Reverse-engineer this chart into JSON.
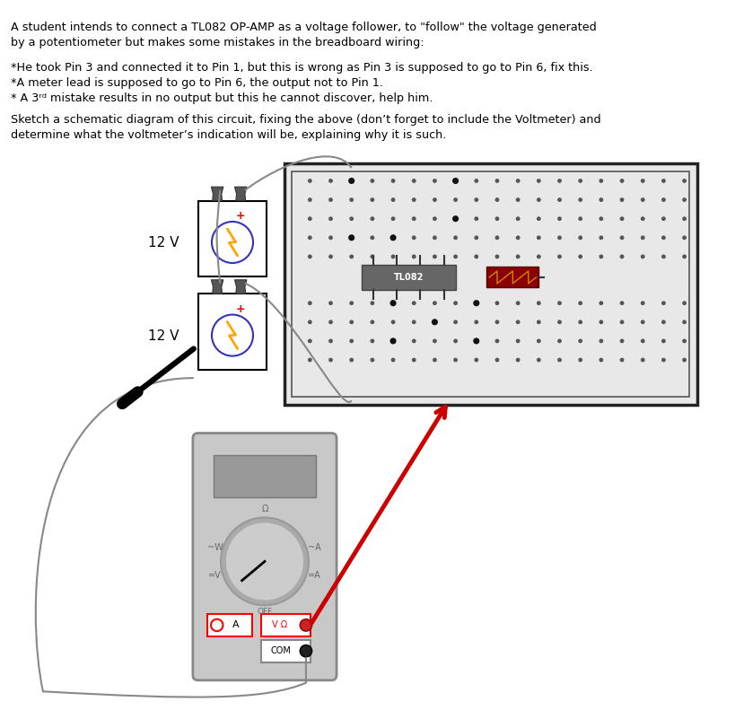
{
  "bg_color": "#ffffff",
  "text_color": "#000000",
  "title_text": "A student intends to connect a TL082 OP-AMP as a voltage follower, to \"follow\" the voltage generated\nby a potentiometer but makes some mistakes in the breadboard wiring:",
  "body_text1": "*He took Pin 3 and connected it to Pin 1, but this is wrong as Pin 3 is supposed to go to Pin 6, fix this.\n*A meter lead is supposed to go to Pin 6, the output not to Pin 1.\n* A 3ʳᵈ mistake results in no output but this he cannot discover, help him.",
  "body_text2": "Sketch a schematic diagram of this circuit, fixing the above (don’t forget to include the Voltmeter) and\ndetermine what the voltmeter’s indication will be, explaining why it is such.",
  "label_12v_1": "12 V",
  "label_12v_2": "12 V",
  "ic_label": "TL082",
  "battery_bg": "#ffffff",
  "battery_border": "#000000",
  "circle_color": "#3333bb",
  "lightning_color": "#FFA500",
  "breadboard_bg": "#e8e8e8",
  "breadboard_outer": "#222222",
  "breadboard_inner": "#555555",
  "dot_color": "#555555",
  "dot_filled_color": "#111111",
  "ic_bg": "#666666",
  "ic_text": "#ffffff",
  "ic_pin_color": "#333333",
  "res_bg": "#8B0000",
  "res_border": "#550000",
  "res_squiggle": "#cc8800",
  "mm_bg": "#c8c8c8",
  "mm_border": "#888888",
  "mm_display_bg": "#999999",
  "mm_dial_outer": "#aaaaaa",
  "mm_dial_inner": "#cccccc",
  "mm_needle": "#000000",
  "mm_label_color": "#666666",
  "red_wire": "#cc0000",
  "gray_wire": "#888888",
  "black_wire": "#000000",
  "clip_color": "#555555",
  "clip_border": "#333333",
  "probe_red": "#cc2222",
  "probe_black": "#222222"
}
